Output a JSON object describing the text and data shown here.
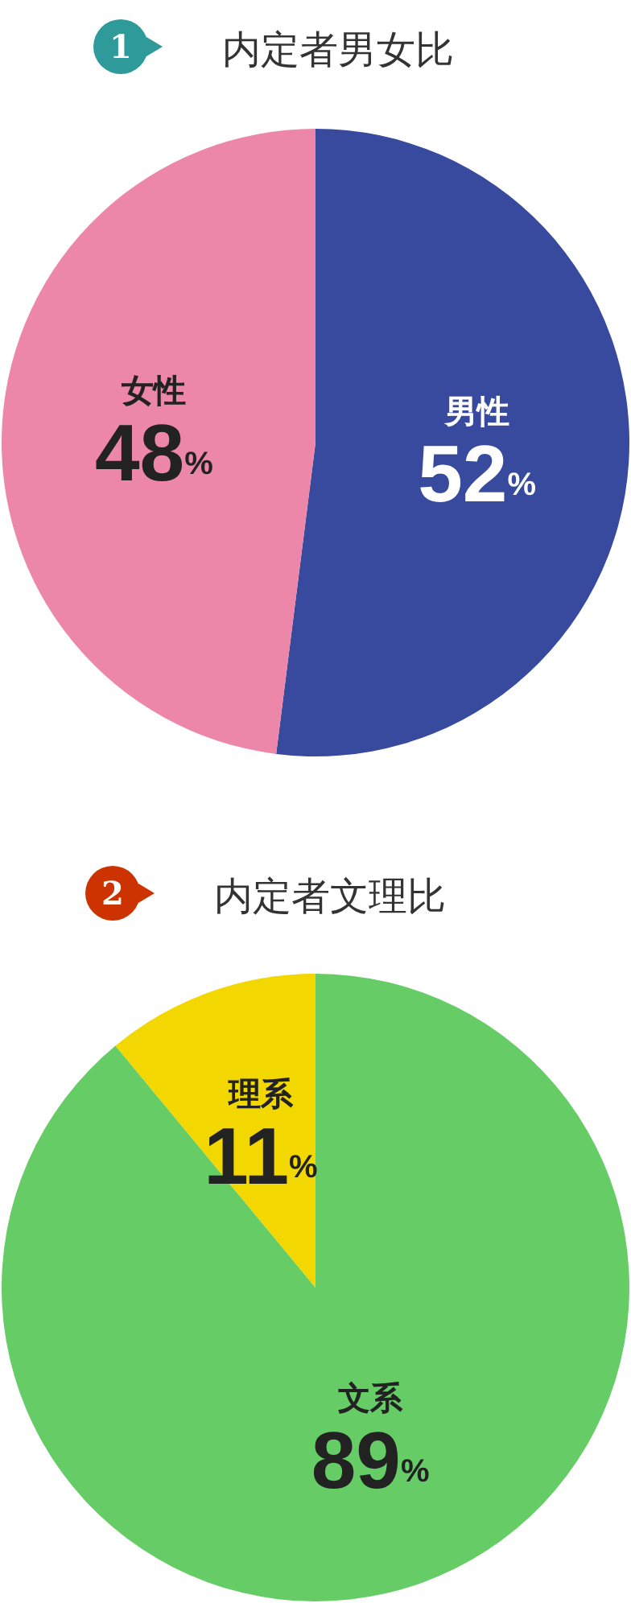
{
  "chart_data": [
    {
      "type": "pie",
      "title": "内定者男女比",
      "annotations": [
        "1"
      ],
      "categories": [
        "男性",
        "女性"
      ],
      "values": [
        52,
        48
      ],
      "colors": [
        "#374a9e",
        "#ed87a9"
      ],
      "value_labels": [
        "52%",
        "48%"
      ],
      "legend": false
    },
    {
      "type": "pie",
      "title": "内定者文理比",
      "annotations": [
        "2"
      ],
      "categories": [
        "文系",
        "理系"
      ],
      "values": [
        89,
        11
      ],
      "colors": [
        "#66cc66",
        "#f2d700"
      ],
      "value_labels": [
        "89%",
        "11%"
      ],
      "legend": false
    }
  ]
}
